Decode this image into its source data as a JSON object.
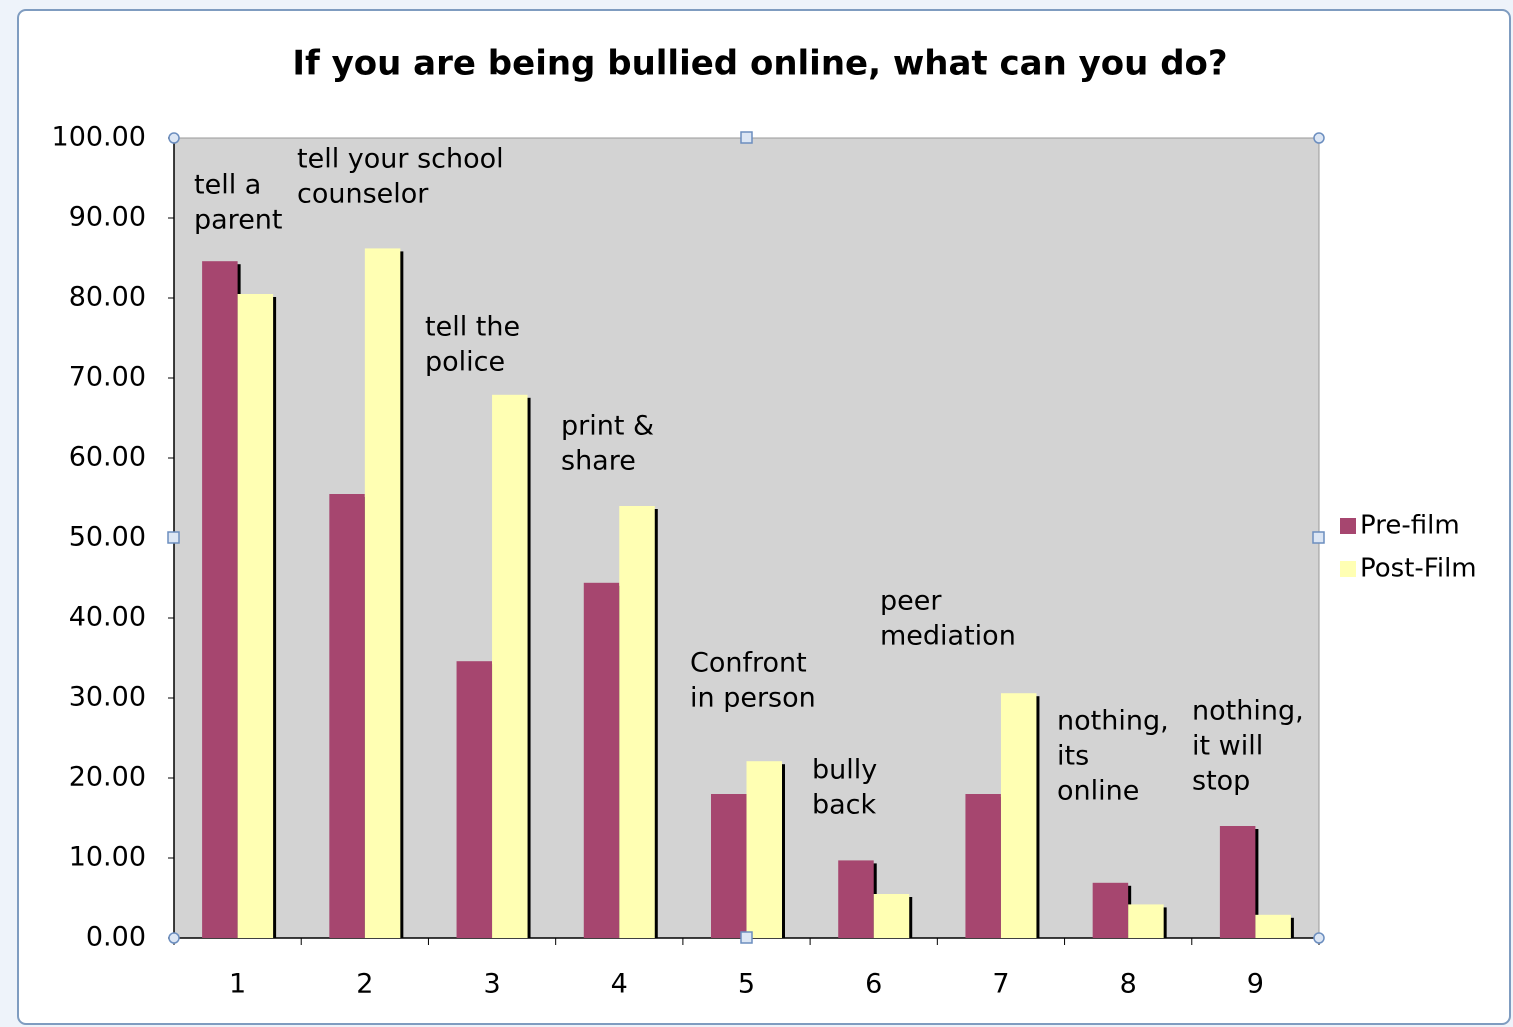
{
  "chart_data": {
    "type": "bar",
    "title": "If you are being bullied online, what can you do?",
    "categories": [
      "1",
      "2",
      "3",
      "4",
      "5",
      "6",
      "7",
      "8",
      "9"
    ],
    "series": [
      {
        "name": "Pre-film",
        "color": "#a6466f",
        "values": [
          84.6,
          55.5,
          34.6,
          44.4,
          18.0,
          9.7,
          18.0,
          6.9,
          14.0
        ]
      },
      {
        "name": "Post-Film",
        "color": "#ffffb3",
        "values": [
          80.5,
          86.2,
          67.9,
          54.0,
          22.1,
          5.5,
          30.6,
          4.2,
          2.9
        ]
      }
    ],
    "ylim": [
      0,
      100
    ],
    "yticks": [
      {
        "value": 0,
        "label": "0.00"
      },
      {
        "value": 10,
        "label": "10.00"
      },
      {
        "value": 20,
        "label": "20.00"
      },
      {
        "value": 30,
        "label": "30.00"
      },
      {
        "value": 40,
        "label": "40.00"
      },
      {
        "value": 50,
        "label": "50.00"
      },
      {
        "value": 60,
        "label": "60.00"
      },
      {
        "value": 70,
        "label": "70.00"
      },
      {
        "value": 80,
        "label": "80.00"
      },
      {
        "value": 90,
        "label": "90.00"
      },
      {
        "value": 100,
        "label": "100.00"
      }
    ],
    "grid": false,
    "legend": "right",
    "annotations": [
      [
        "tell a",
        "parent"
      ],
      [
        "tell your school",
        "counselor"
      ],
      [
        "tell the",
        "police"
      ],
      [
        "print &",
        "share"
      ],
      [
        "Confront",
        "in person"
      ],
      [
        "bully",
        "back"
      ],
      [
        "peer",
        "mediation"
      ],
      [
        "nothing,",
        "its",
        "online"
      ],
      [
        "nothing,",
        "it will",
        "stop"
      ]
    ]
  }
}
